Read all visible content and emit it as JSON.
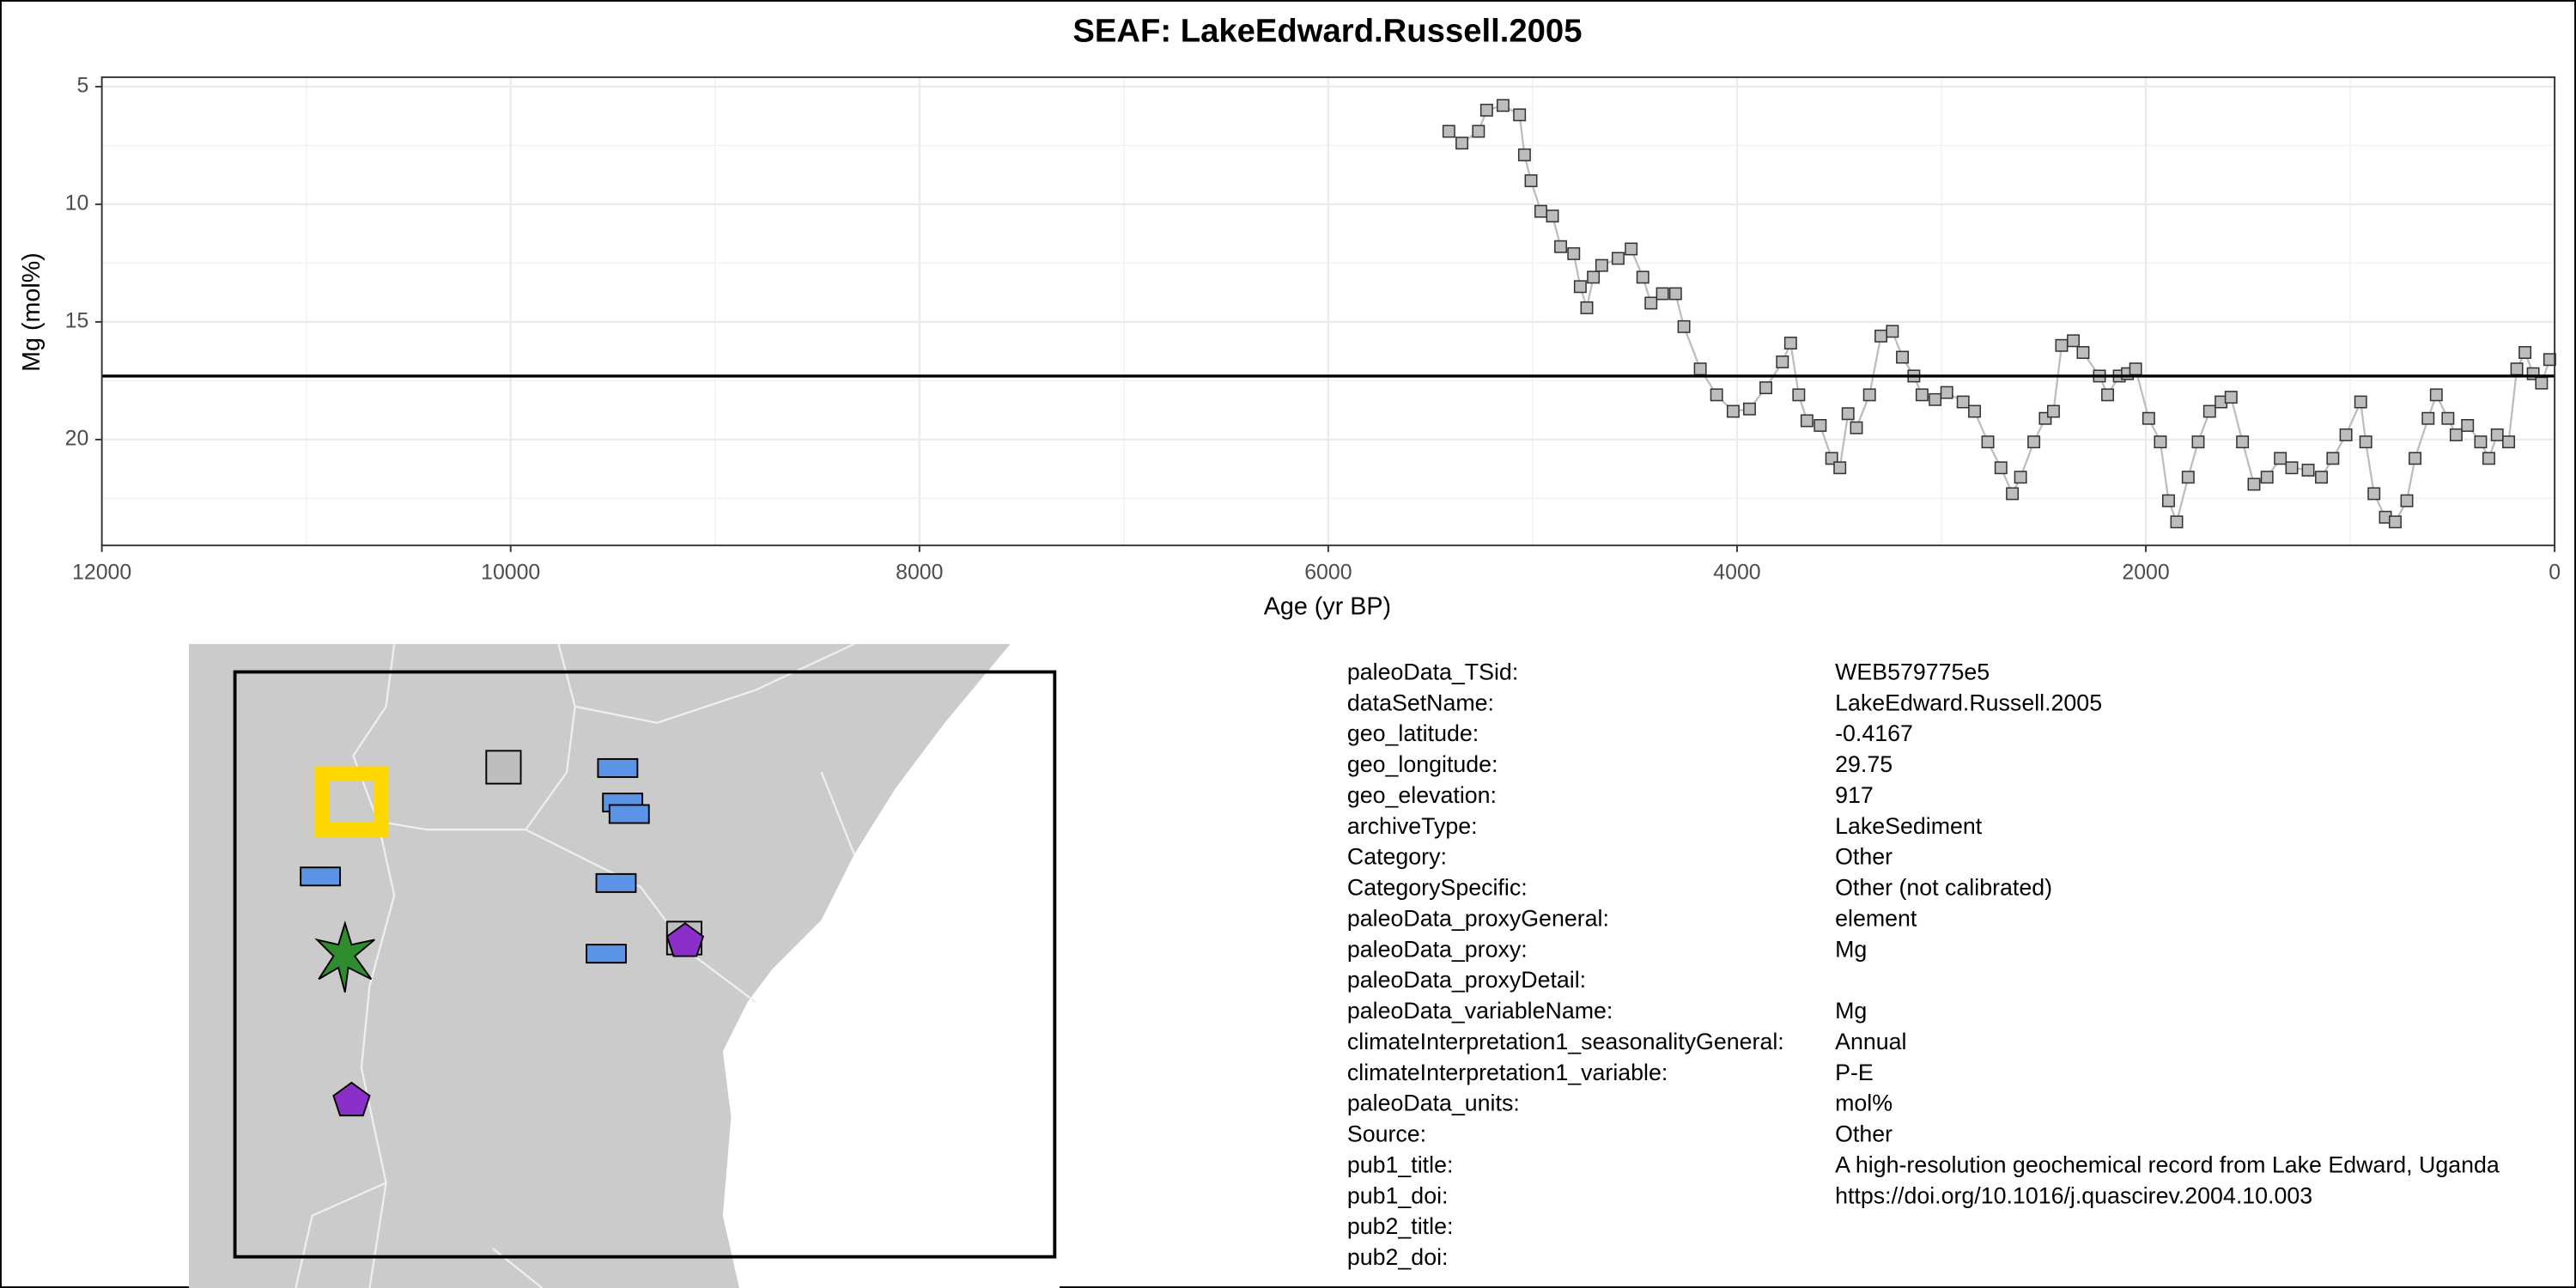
{
  "chart_data": {
    "type": "line",
    "title": "SEAF: LakeEdward.Russell.2005",
    "x_label": "Age (yr BP)",
    "y_label": "Mg (mol%)",
    "xlim": [
      0,
      12000
    ],
    "x_reversed": true,
    "xticks": [
      12000,
      10000,
      8000,
      6000,
      4000,
      2000,
      0
    ],
    "ylim": [
      4.6,
      24.5
    ],
    "y_reversed": true,
    "yticks": [
      5,
      10,
      15,
      20
    ],
    "grid": true,
    "hline": 17.3,
    "series": [
      {
        "name": "Mg",
        "color": "#bdbdbd",
        "x": [
          5410,
          5346,
          5265,
          5225,
          5145,
          5064,
          5040,
          5008,
          4960,
          4903,
          4863,
          4799,
          4767,
          4735,
          4703,
          4662,
          4582,
          4518,
          4461,
          4421,
          4365,
          4301,
          4260,
          4180,
          4100,
          4019,
          3939,
          3859,
          3778,
          3738,
          3698,
          3658,
          3593,
          3537,
          3497,
          3457,
          3416,
          3352,
          3296,
          3240,
          3191,
          3135,
          3095,
          3031,
          2974,
          2894,
          2838,
          2773,
          2709,
          2653,
          2613,
          2548,
          2492,
          2452,
          2412,
          2355,
          2307,
          2227,
          2187,
          2130,
          2090,
          2050,
          1986,
          1929,
          1889,
          1849,
          1793,
          1744,
          1688,
          1632,
          1583,
          1527,
          1471,
          1407,
          1342,
          1286,
          1206,
          1141,
          1085,
          1021,
          949,
          924,
          884,
          828,
          780,
          723,
          683,
          619,
          579,
          522,
          482,
          426,
          362,
          322,
          281,
          225,
          185,
          145,
          105,
          64,
          24
        ],
        "values": [
          6.9,
          7.4,
          6.9,
          6.0,
          5.8,
          6.2,
          7.9,
          9.0,
          10.3,
          10.5,
          11.8,
          12.1,
          13.5,
          14.4,
          13.1,
          12.6,
          12.3,
          11.9,
          13.1,
          14.2,
          13.8,
          13.8,
          15.2,
          17.0,
          18.1,
          18.8,
          18.7,
          17.8,
          16.7,
          15.9,
          18.1,
          19.2,
          19.4,
          20.8,
          21.2,
          18.9,
          19.5,
          18.1,
          15.6,
          15.4,
          16.5,
          17.3,
          18.1,
          18.3,
          18.0,
          18.4,
          18.8,
          20.1,
          21.2,
          22.3,
          21.6,
          20.1,
          19.1,
          18.8,
          16.0,
          15.8,
          16.3,
          17.3,
          18.1,
          17.3,
          17.2,
          17.0,
          19.1,
          20.1,
          22.6,
          23.5,
          21.6,
          20.1,
          18.8,
          18.4,
          18.2,
          20.1,
          21.9,
          21.6,
          20.8,
          21.2,
          21.3,
          21.6,
          20.8,
          19.8,
          18.4,
          20.1,
          22.3,
          23.3,
          23.5,
          22.6,
          20.8,
          19.1,
          18.1,
          19.1,
          19.8,
          19.4,
          20.1,
          20.8,
          19.8,
          20.1,
          17.0,
          16.3,
          17.2,
          17.6,
          16.6
        ]
      }
    ]
  },
  "metadata": {
    "rows": [
      {
        "key": "paleoData_TSid:",
        "value": "WEB579775e5"
      },
      {
        "key": "dataSetName:",
        "value": "LakeEdward.Russell.2005"
      },
      {
        "key": "geo_latitude:",
        "value": "-0.4167"
      },
      {
        "key": "geo_longitude:",
        "value": "29.75"
      },
      {
        "key": "geo_elevation:",
        "value": "917"
      },
      {
        "key": "archiveType:",
        "value": "LakeSediment"
      },
      {
        "key": "Category:",
        "value": "Other"
      },
      {
        "key": "CategorySpecific:",
        "value": "Other (not calibrated)"
      },
      {
        "key": "paleoData_proxyGeneral:",
        "value": "element"
      },
      {
        "key": "paleoData_proxy:",
        "value": "Mg"
      },
      {
        "key": "paleoData_proxyDetail:"
      },
      {
        "key": "paleoData_variableName:",
        "value": "Mg"
      },
      {
        "key": "climateInterpretation1_seasonalityGeneral:",
        "value": "Annual"
      },
      {
        "key": "climateInterpretation1_variable:",
        "value": "P-E"
      },
      {
        "key": "paleoData_units:",
        "value": "mol%"
      },
      {
        "key": "Source:",
        "value": "Other"
      },
      {
        "key": "pub1_title:",
        "value": "A high-resolution geochemical record from Lake Edward, Uganda"
      },
      {
        "key": "pub1_doi:",
        "value": "https://doi.org/10.1016/j.quascirev.2004.10.003"
      },
      {
        "key": "pub2_title:"
      },
      {
        "key": "pub2_doi:"
      }
    ]
  }
}
